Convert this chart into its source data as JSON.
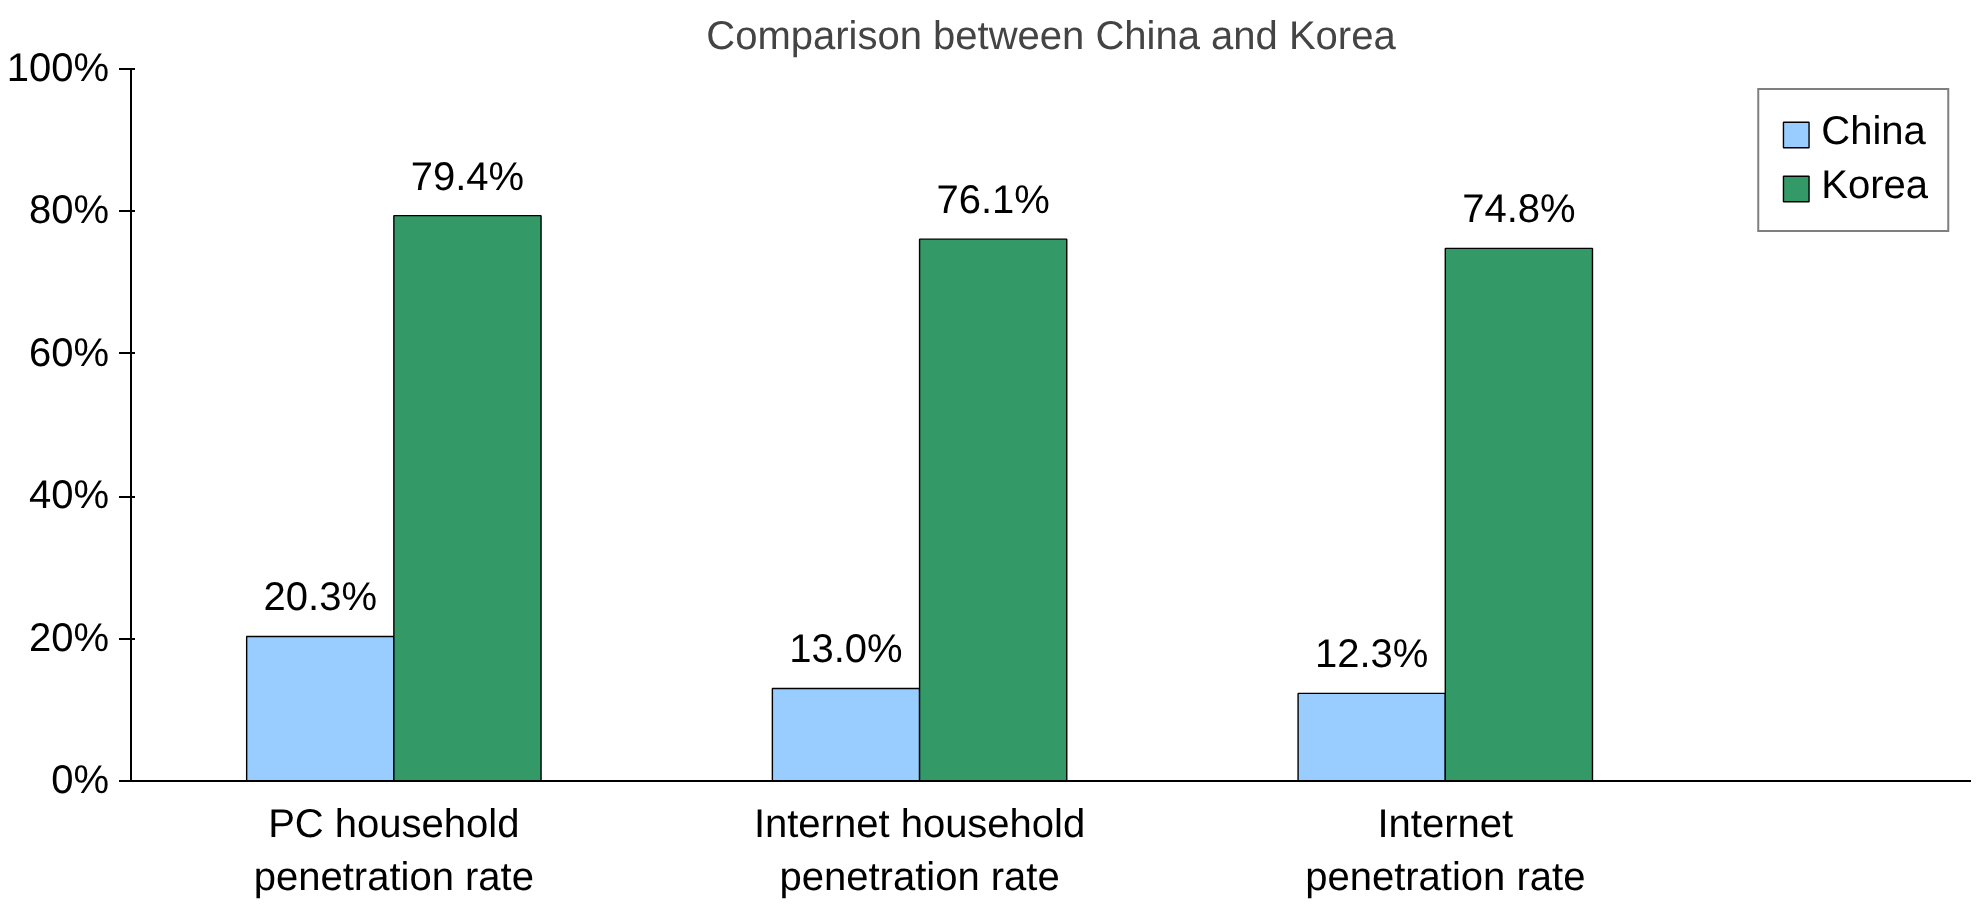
{
  "chart_data": {
    "type": "bar",
    "title": "Comparison between China and Korea",
    "categories": [
      "PC household penetration rate",
      "Internet household penetration rate",
      "Internet penetration rate"
    ],
    "series": [
      {
        "name": "China",
        "color": "#99ccff",
        "values": [
          20.3,
          13.0,
          12.3
        ],
        "value_labels": [
          "20.3%",
          "13.0%",
          "12.3%"
        ]
      },
      {
        "name": "Korea",
        "color": "#339966",
        "values": [
          79.4,
          76.1,
          74.8
        ],
        "value_labels": [
          "79.4%",
          "76.1%",
          "74.8%"
        ]
      }
    ],
    "ylim": [
      0,
      100
    ],
    "yticks": [
      {
        "value": 0,
        "label": "0%"
      },
      {
        "value": 20,
        "label": "20%"
      },
      {
        "value": 40,
        "label": "40%"
      },
      {
        "value": 60,
        "label": "60%"
      },
      {
        "value": 80,
        "label": "80%"
      },
      {
        "value": 100,
        "label": "100%"
      }
    ],
    "grid": false,
    "legend": "top right"
  }
}
